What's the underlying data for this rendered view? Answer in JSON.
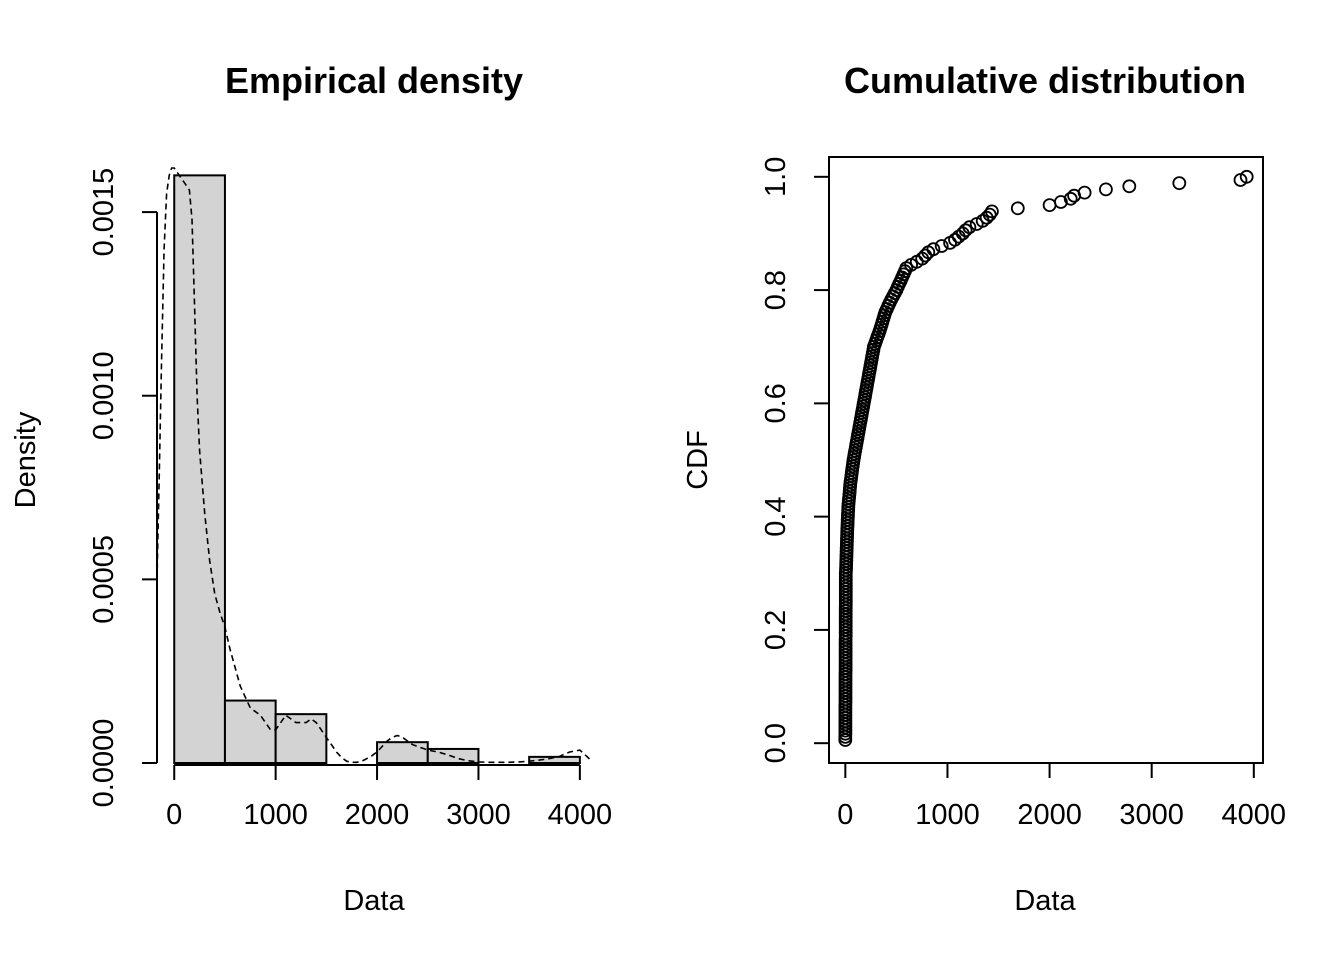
{
  "chart_data": [
    {
      "type": "bar",
      "title": "Empirical density",
      "xlabel": "Data",
      "ylabel": "Density",
      "xlim": [
        -170,
        4100
      ],
      "ylim": [
        0,
        0.00165
      ],
      "x_ticks": [
        0,
        1000,
        2000,
        3000,
        4000
      ],
      "x_tick_labels": [
        "0",
        "1000",
        "2000",
        "3000",
        "4000"
      ],
      "y_ticks": [
        0,
        0.0005,
        0.001,
        0.0015
      ],
      "y_tick_labels": [
        "0.0000",
        "0.0005",
        "0.0010",
        "0.0015"
      ],
      "bins": [
        {
          "x0": 0,
          "x1": 500,
          "density": 0.0016
        },
        {
          "x0": 500,
          "x1": 1000,
          "density": 0.00017
        },
        {
          "x0": 1000,
          "x1": 1500,
          "density": 0.000133
        },
        {
          "x0": 1500,
          "x1": 2000,
          "density": 0
        },
        {
          "x0": 2000,
          "x1": 2500,
          "density": 5.67e-05
        },
        {
          "x0": 2500,
          "x1": 3000,
          "density": 3.83e-05
        },
        {
          "x0": 3000,
          "x1": 3500,
          "density": 0
        },
        {
          "x0": 3500,
          "x1": 4000,
          "density": 1.67e-05
        }
      ],
      "density_curve": {
        "x": [
          -175,
          -150,
          -125,
          -100,
          -75,
          -50,
          -25,
          0,
          25,
          50,
          75,
          100,
          125,
          150,
          175,
          200,
          225,
          250,
          300,
          350,
          400,
          450,
          500,
          550,
          600,
          650,
          700,
          750,
          800,
          850,
          900,
          950,
          1000,
          1050,
          1100,
          1150,
          1200,
          1250,
          1300,
          1350,
          1400,
          1450,
          1500,
          1550,
          1600,
          1650,
          1700,
          1750,
          1800,
          1850,
          1900,
          1950,
          2000,
          2050,
          2100,
          2150,
          2200,
          2250,
          2300,
          2350,
          2400,
          2450,
          2500,
          2600,
          2700,
          2800,
          2900,
          3000,
          3100,
          3200,
          3300,
          3400,
          3500,
          3600,
          3700,
          3800,
          3900,
          4000,
          4100
        ],
        "y": [
          0.0005,
          0.00075,
          0.0011,
          0.0014,
          0.00155,
          0.0016,
          0.00162,
          0.00162,
          0.00161,
          0.0016,
          0.00159,
          0.00158,
          0.00157,
          0.00156,
          0.00148,
          0.00125,
          0.001,
          0.00085,
          0.00068,
          0.00055,
          0.00046,
          0.00041,
          0.00037,
          0.00031,
          0.00026,
          0.00021,
          0.00018,
          0.00015,
          0.00014,
          0.00013,
          0.00011,
          9e-05,
          9e-05,
          0.00011,
          0.00013,
          0.00012,
          0.00011,
          0.00011,
          0.00011,
          0.00012,
          0.00011,
          9e-05,
          7e-05,
          5e-05,
          3e-05,
          1.5e-05,
          5e-06,
          2e-06,
          2e-06,
          5e-06,
          1.2e-05,
          2e-05,
          3e-05,
          4.5e-05,
          6e-05,
          7e-05,
          7.5e-05,
          7e-05,
          6e-05,
          5e-05,
          4.5e-05,
          4e-05,
          3.5e-05,
          3e-05,
          2.2e-05,
          1.2e-05,
          6e-06,
          3e-06,
          2e-06,
          2e-06,
          2e-06,
          3e-06,
          5e-06,
          8e-06,
          1.2e-05,
          1.8e-05,
          3e-05,
          3.5e-05,
          1e-05
        ]
      }
    },
    {
      "type": "scatter",
      "title": "Cumulative distribution",
      "xlabel": "Data",
      "ylabel": "CDF",
      "xlim": [
        -160,
        4090
      ],
      "ylim": [
        -0.035,
        1.035
      ],
      "x_ticks": [
        0,
        1000,
        2000,
        3000,
        4000
      ],
      "x_tick_labels": [
        "0",
        "1000",
        "2000",
        "3000",
        "4000"
      ],
      "y_ticks": [
        0,
        0.2,
        0.4,
        0.6,
        0.8,
        1.0
      ],
      "y_tick_labels": [
        "0.0",
        "0.2",
        "0.4",
        "0.6",
        "0.8",
        "1.0"
      ],
      "n_points": 180,
      "anchors_x": [
        0,
        5,
        20,
        30,
        50,
        80,
        120,
        160,
        200,
        240,
        280,
        340,
        390,
        440,
        500,
        550,
        600,
        750,
        830,
        1050,
        1100,
        1150,
        1200,
        1330,
        1400,
        1440,
        2000,
        2200,
        2260,
        2560,
        2850,
        3930
      ],
      "anchors_cdf": [
        0.005,
        0.3,
        0.38,
        0.42,
        0.46,
        0.5,
        0.54,
        0.58,
        0.62,
        0.66,
        0.7,
        0.73,
        0.76,
        0.78,
        0.8,
        0.82,
        0.84,
        0.855,
        0.87,
        0.885,
        0.893,
        0.9,
        0.91,
        0.92,
        0.93,
        0.94,
        0.95,
        0.96,
        0.97,
        0.978,
        0.985,
        0.995
      ]
    }
  ]
}
